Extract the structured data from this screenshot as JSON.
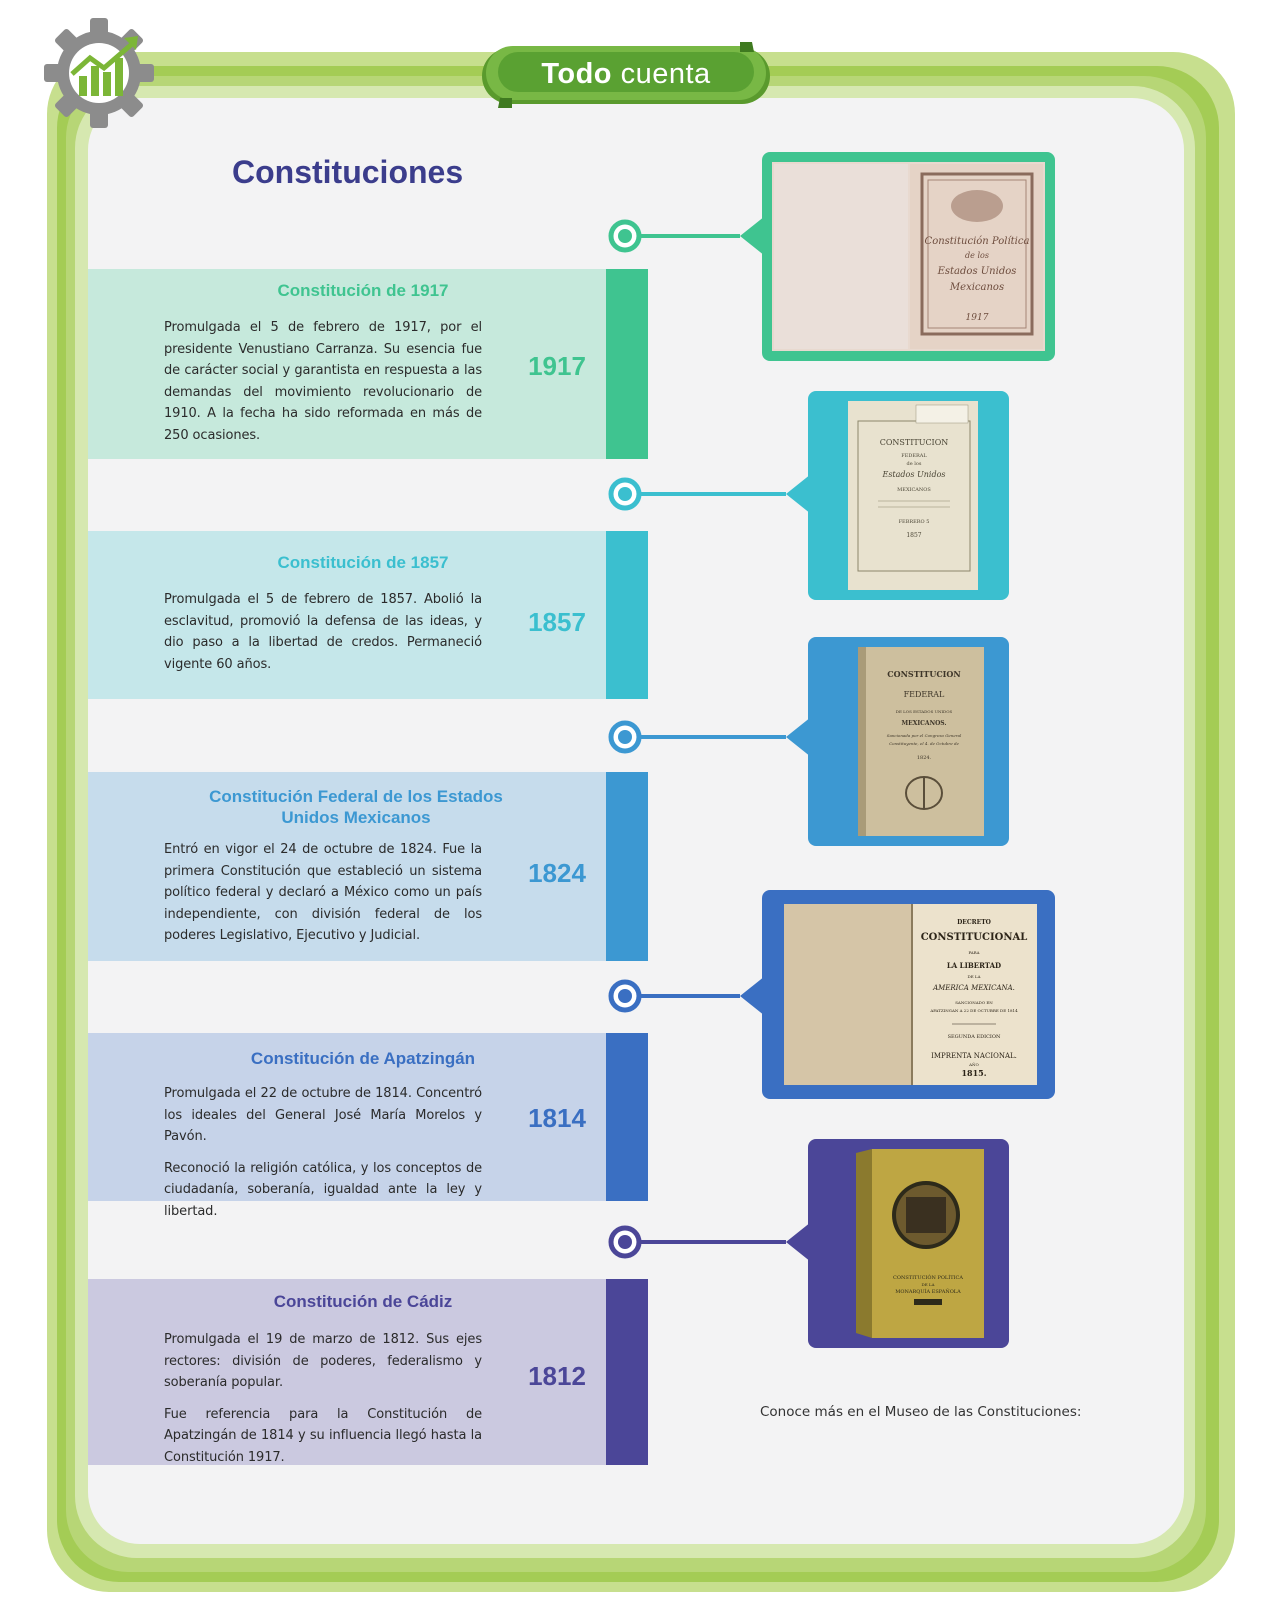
{
  "header": {
    "bold": "Todo",
    "light": "cuenta"
  },
  "page_title": "Constituciones",
  "sections": [
    {
      "title": "Constitución de 1917",
      "paragraphs": [
        "Promulgada el 5 de febrero de 1917, por el presidente Venustiano Carranza. Su esencia fue de carácter social y garantista en respuesta a las demandas del movimiento revolucionario de 1910.  A la fecha ha sido reformada en más de 250 ocasiones."
      ],
      "year": "1917",
      "color": "#3fc490",
      "panel": "#c6e9dc"
    },
    {
      "title": "Constitución de 1857",
      "paragraphs": [
        "Promulgada el 5 de febrero de 1857. Abolió la esclavitud, promovió la defensa de las ideas, y dio paso a la libertad de credos. Permaneció vigente 60 años."
      ],
      "year": "1857",
      "color": "#3bbfcf",
      "panel": "#c5e7ea"
    },
    {
      "title": "Constitución Federal de los Estados Unidos Mexicanos",
      "paragraphs": [
        "Entró en vigor el 24 de octubre de 1824. Fue la primera Constitución que estableció un sistema político federal y declaró a México como un país independiente, con división federal de los poderes Legislativo, Ejecutivo y Judicial."
      ],
      "year": "1824",
      "color": "#3c98d2",
      "panel": "#c6dcec"
    },
    {
      "title": "Constitución de Apatzingán",
      "paragraphs": [
        "Promulgada el 22 de octubre de 1814. Concentró los ideales del General José María Morelos y Pavón.",
        "Reconoció la religión católica, y los conceptos de ciudadanía, soberanía, igualdad ante la ley y libertad."
      ],
      "year": "1814",
      "color": "#3a6fc2",
      "panel": "#c6d3e9"
    },
    {
      "title": "Constitución de Cádiz",
      "paragraphs": [
        "Promulgada el 19 de marzo de 1812. Sus ejes rectores: división de poderes, federalismo y soberanía popular.",
        "Fue referencia para la Constitución de Apatzingán  de 1814 y su influencia llegó hasta la Constitución 1917."
      ],
      "year": "1812",
      "color": "#4b4698",
      "panel": "#cbc9e0"
    }
  ],
  "images": [
    {
      "title_lines": [
        "Constitución Política",
        "de los",
        "Estados Unidos",
        "Mexicanos",
        "1917"
      ]
    },
    {
      "title_lines": [
        "CONSTITUCION",
        "FEDERAL",
        "de los",
        "Estados Unidos",
        "MEXICANOS",
        "FEBRERO 5",
        "1857"
      ]
    },
    {
      "title_lines": [
        "CONSTITUCION",
        "FEDERAL",
        "DE LOS ESTADOS UNIDOS",
        "MEXICANOS.",
        "Sancionada por el Congreso General",
        "Constituyente, el 4. de Octubre de",
        "1824."
      ]
    },
    {
      "title_lines": [
        "DECRETO",
        "CONSTITUCIONAL",
        "PARA",
        "LA LIBERTAD",
        "DE LA",
        "AMERICA MEXICANA.",
        "SANCIONADO EN",
        "APATZINGAN A 22 DE OCTUBRE DE 1814",
        "SEGUNDA EDICION",
        "IMPRENTA NACIONAL.",
        "AÑO",
        "1815."
      ]
    },
    {
      "title_lines": [
        "CONSTITUCIÓN POLÍTICA",
        "DE LA",
        "MONARQUÍA ESPAÑOLA"
      ]
    }
  ],
  "museum_note": "Conoce más en el Museo de las Constituciones:",
  "colors": {
    "frame_green": "#a4cc55",
    "title_blue": "#3b3d8c",
    "header_green": "#6db33f"
  }
}
